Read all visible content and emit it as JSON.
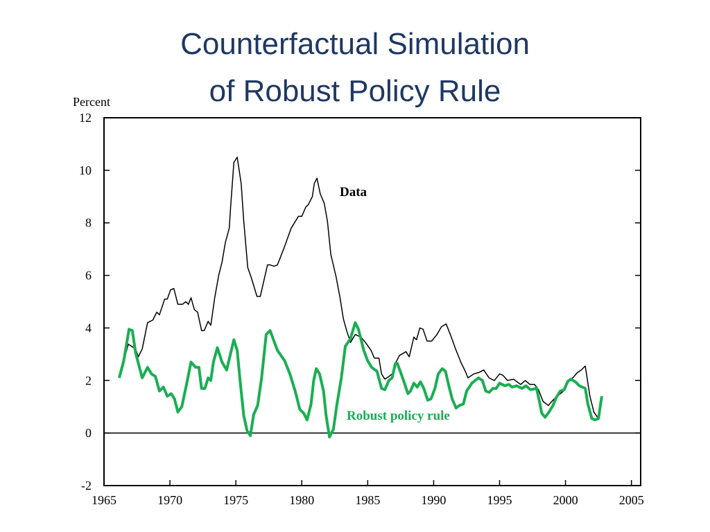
{
  "chart_data": {
    "type": "line",
    "title_lines": [
      "Counterfactual Simulation",
      "of Robust Policy Rule"
    ],
    "y_label": "Percent",
    "annotations": [
      "Data",
      "Robust policy rule"
    ],
    "xlim": [
      1965,
      2005.7
    ],
    "xticks": [
      1965,
      1970,
      1975,
      1980,
      1985,
      1990,
      1995,
      2000,
      2005
    ],
    "ylim": [
      -2,
      12
    ],
    "yticks": [
      -2,
      0,
      2,
      4,
      6,
      8,
      10,
      12
    ],
    "zero_line": true,
    "series": [
      {
        "name": "Data",
        "color": "#000000",
        "width": 1.5,
        "x": [
          1966.16,
          1966.84,
          1967.4,
          1967.6,
          1967.9,
          1968.3,
          1968.7,
          1969.0,
          1969.2,
          1969.6,
          1969.8,
          1970.05,
          1970.3,
          1970.6,
          1970.95,
          1971.2,
          1971.4,
          1971.6,
          1971.85,
          1972.1,
          1972.4,
          1972.6,
          1972.9,
          1973.1,
          1973.4,
          1973.7,
          1973.95,
          1974.2,
          1974.5,
          1974.6,
          1974.85,
          1975.1,
          1975.4,
          1975.6,
          1975.9,
          1976.15,
          1976.6,
          1976.85,
          1977.4,
          1977.6,
          1977.9,
          1978.15,
          1978.7,
          1979.2,
          1979.75,
          1980.0,
          1980.3,
          1980.5,
          1980.8,
          1980.95,
          1981.15,
          1981.4,
          1981.7,
          1981.95,
          1982.2,
          1982.6,
          1982.9,
          1983.15,
          1983.4,
          1983.7,
          1984.05,
          1984.5,
          1984.9,
          1985.25,
          1985.5,
          1985.85,
          1986.05,
          1986.3,
          1986.6,
          1986.85,
          1987.1,
          1987.4,
          1987.9,
          1988.15,
          1988.5,
          1988.7,
          1988.95,
          1989.2,
          1989.5,
          1989.85,
          1990.25,
          1990.6,
          1990.95,
          1991.3,
          1991.7,
          1992.1,
          1992.4,
          1992.6,
          1993.05,
          1993.4,
          1993.8,
          1994.2,
          1994.6,
          1995.0,
          1995.25,
          1995.6,
          1996.05,
          1996.6,
          1996.95,
          1997.3,
          1997.65,
          1997.95,
          1998.3,
          1998.7,
          1999.05,
          1999.5,
          1999.85,
          2000.15,
          2000.55,
          2000.9,
          2001.2,
          2001.5,
          2001.85,
          2002.15,
          2002.5,
          2002.8
        ],
        "values": [
          2.1,
          3.38,
          3.2,
          2.9,
          3.2,
          4.2,
          4.3,
          4.6,
          4.5,
          5.1,
          5.1,
          5.45,
          5.5,
          4.9,
          4.9,
          5.0,
          4.9,
          5.15,
          4.7,
          4.6,
          3.9,
          3.9,
          4.25,
          4.1,
          5.15,
          6.0,
          6.5,
          7.25,
          7.8,
          8.6,
          10.3,
          10.5,
          9.5,
          8.05,
          6.3,
          5.95,
          5.2,
          5.2,
          6.4,
          6.4,
          6.35,
          6.4,
          7.1,
          7.8,
          8.25,
          8.25,
          8.6,
          8.7,
          9.0,
          9.5,
          9.7,
          9.1,
          8.75,
          8.05,
          6.8,
          5.95,
          5.15,
          4.35,
          3.9,
          3.45,
          3.75,
          3.65,
          3.4,
          3.15,
          2.85,
          2.85,
          2.25,
          2.05,
          2.15,
          2.25,
          2.65,
          2.95,
          3.1,
          2.9,
          3.65,
          3.55,
          4.0,
          3.95,
          3.5,
          3.5,
          3.75,
          4.05,
          4.15,
          3.7,
          3.15,
          2.65,
          2.35,
          2.1,
          2.25,
          2.3,
          2.4,
          2.1,
          2.0,
          2.25,
          2.2,
          2.0,
          2.05,
          1.85,
          2.0,
          1.85,
          1.85,
          1.65,
          1.2,
          1.05,
          1.25,
          1.45,
          1.6,
          2.0,
          2.1,
          2.3,
          2.4,
          2.55,
          1.4,
          0.8,
          0.55,
          1.4
        ]
      },
      {
        "name": "Robust policy rule",
        "color": "#1aae52",
        "width": 4,
        "x": [
          1966.15,
          1966.5,
          1966.9,
          1967.15,
          1967.4,
          1967.9,
          1968.3,
          1968.6,
          1968.9,
          1969.2,
          1969.5,
          1969.8,
          1970.1,
          1970.35,
          1970.6,
          1970.9,
          1971.3,
          1971.6,
          1971.95,
          1972.2,
          1972.4,
          1972.65,
          1972.9,
          1973.1,
          1973.3,
          1973.6,
          1973.95,
          1974.3,
          1974.85,
          1975.1,
          1975.35,
          1975.6,
          1975.85,
          1976.1,
          1976.35,
          1976.65,
          1976.95,
          1977.3,
          1977.6,
          1977.85,
          1978.15,
          1978.7,
          1979.1,
          1979.5,
          1979.85,
          1980.15,
          1980.4,
          1980.7,
          1980.9,
          1981.1,
          1981.35,
          1981.65,
          1981.85,
          1982.1,
          1982.4,
          1982.65,
          1983.0,
          1983.3,
          1983.7,
          1984.05,
          1984.3,
          1984.7,
          1985.0,
          1985.3,
          1985.7,
          1986.05,
          1986.3,
          1986.6,
          1986.85,
          1987.1,
          1987.25,
          1987.65,
          1988.05,
          1988.25,
          1988.5,
          1988.75,
          1989.0,
          1989.25,
          1989.55,
          1989.8,
          1990.1,
          1990.35,
          1990.65,
          1990.9,
          1991.15,
          1991.4,
          1991.7,
          1991.95,
          1992.25,
          1992.5,
          1992.9,
          1993.15,
          1993.4,
          1993.7,
          1993.95,
          1994.2,
          1994.5,
          1994.75,
          1995.0,
          1995.4,
          1995.7,
          1995.95,
          1996.3,
          1996.7,
          1997.0,
          1997.35,
          1997.8,
          1998.0,
          1998.2,
          1998.45,
          1998.75,
          1999.05,
          1999.3,
          1999.6,
          1999.9,
          2000.15,
          2000.4,
          2000.75,
          2001.05,
          2001.5,
          2001.7,
          2002.0,
          2002.25,
          2002.5,
          2002.75
        ],
        "values": [
          2.1,
          2.75,
          3.95,
          3.9,
          3.05,
          2.1,
          2.5,
          2.25,
          2.15,
          1.6,
          1.75,
          1.4,
          1.5,
          1.3,
          0.8,
          1.0,
          1.95,
          2.7,
          2.5,
          2.5,
          1.7,
          1.7,
          2.1,
          2.0,
          2.7,
          3.25,
          2.7,
          2.4,
          3.55,
          3.15,
          1.85,
          0.65,
          0.1,
          -0.1,
          0.7,
          1.05,
          2.1,
          3.75,
          3.9,
          3.55,
          3.15,
          2.75,
          2.25,
          1.6,
          0.9,
          0.75,
          0.5,
          1.1,
          2.0,
          2.45,
          2.25,
          1.6,
          0.65,
          -0.15,
          0.15,
          1.05,
          2.1,
          3.3,
          3.6,
          4.2,
          3.95,
          3.15,
          2.75,
          2.5,
          2.35,
          1.7,
          1.65,
          2.0,
          2.1,
          2.65,
          2.65,
          2.1,
          1.5,
          1.6,
          1.9,
          1.75,
          1.95,
          1.7,
          1.25,
          1.3,
          1.7,
          2.25,
          2.45,
          2.35,
          1.8,
          1.3,
          0.95,
          1.05,
          1.1,
          1.6,
          1.9,
          2.0,
          2.1,
          2.0,
          1.6,
          1.55,
          1.7,
          1.7,
          1.9,
          1.8,
          1.85,
          1.75,
          1.8,
          1.7,
          1.8,
          1.65,
          1.7,
          1.25,
          0.75,
          0.6,
          0.8,
          1.05,
          1.35,
          1.6,
          1.65,
          1.95,
          2.05,
          1.95,
          1.8,
          1.7,
          1.1,
          0.55,
          0.5,
          0.55,
          1.4
        ]
      }
    ]
  }
}
